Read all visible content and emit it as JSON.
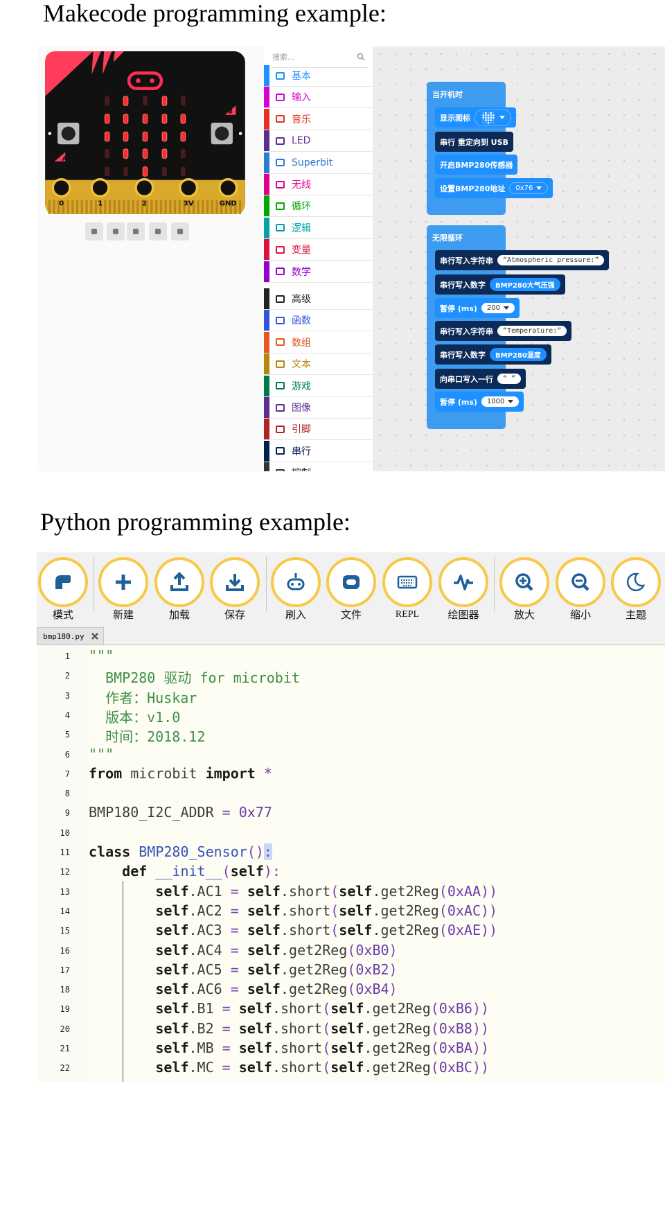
{
  "makecode": {
    "title": "Makecode programming example:",
    "search_placeholder": "搜索...",
    "categories": [
      "基本",
      "输入",
      "音乐",
      "LED",
      "Superbit",
      "无线",
      "循环",
      "逻辑",
      "变量",
      "数学",
      "高级",
      "函数",
      "数组",
      "文本",
      "游戏",
      "图像",
      "引脚",
      "串行",
      "控制"
    ],
    "board": {
      "pins": [
        "0",
        "1",
        "2",
        "3V",
        "GND"
      ],
      "buttons": [
        "A",
        "B"
      ]
    },
    "blocks": {
      "on_start": {
        "label": "当开机时",
        "items": [
          {
            "label": "显示图标"
          },
          {
            "label": "串行 重定向到 USB"
          },
          {
            "label": "开启BMP280传感器"
          },
          {
            "label": "设置BMP280地址",
            "field": "0x76"
          }
        ]
      },
      "forever": {
        "label": "无限循环",
        "items": [
          {
            "label": "串行写入字符串",
            "field": "“Atmospheric pressure:”"
          },
          {
            "label": "串行写入数字",
            "field": "BMP280大气压强"
          },
          {
            "label": "暂停 (ms)",
            "field": 200
          },
          {
            "label": "串行写入字符串",
            "field": "“Temperature:”"
          },
          {
            "label": "串行写入数字",
            "field": "BMP280温度"
          },
          {
            "label": "向串口写入一行",
            "field": "“ ”"
          },
          {
            "label": "暂停 (ms)",
            "field": 1000
          }
        ]
      }
    }
  },
  "python": {
    "title": "Python programming example:",
    "toolbar": [
      "模式",
      "新建",
      "加载",
      "保存",
      "刷入",
      "文件",
      "REPL",
      "绘图器",
      "放大",
      "缩小",
      "主题"
    ],
    "tab": "bmp180.py",
    "code": {
      "line_numbers": [
        1,
        2,
        3,
        4,
        5,
        6,
        7,
        8,
        9,
        10,
        11,
        12,
        13,
        14,
        15,
        16,
        17,
        18,
        19,
        20,
        21,
        22
      ],
      "lines": [
        "\"\"\"",
        "  BMP280 驱动 for microbit",
        "  作者：Huskar",
        "  版本：v1.0",
        "  时间：2018.12",
        "\"\"\"",
        "from microbit import *",
        null,
        "BMP180_I2C_ADDR = 0x77",
        null,
        "class BMP280_Sensor():",
        "    def __init__(self):",
        "        self.AC1 = self.short(self.get2Reg(0xAA))",
        "        self.AC2 = self.short(self.get2Reg(0xAC))",
        "        self.AC3 = self.short(self.get2Reg(0xAE))",
        "        self.AC4 = self.get2Reg(0xB0)",
        "        self.AC5 = self.get2Reg(0xB2)",
        "        self.AC6 = self.get2Reg(0xB4)",
        "        self.B1 = self.short(self.get2Reg(0xB6))",
        "        self.B2 = self.short(self.get2Reg(0xB8))",
        "        self.MB = self.short(self.get2Reg(0xBA))",
        "        self.MC = self.short(self.get2Reg(0xBC))"
      ]
    }
  }
}
